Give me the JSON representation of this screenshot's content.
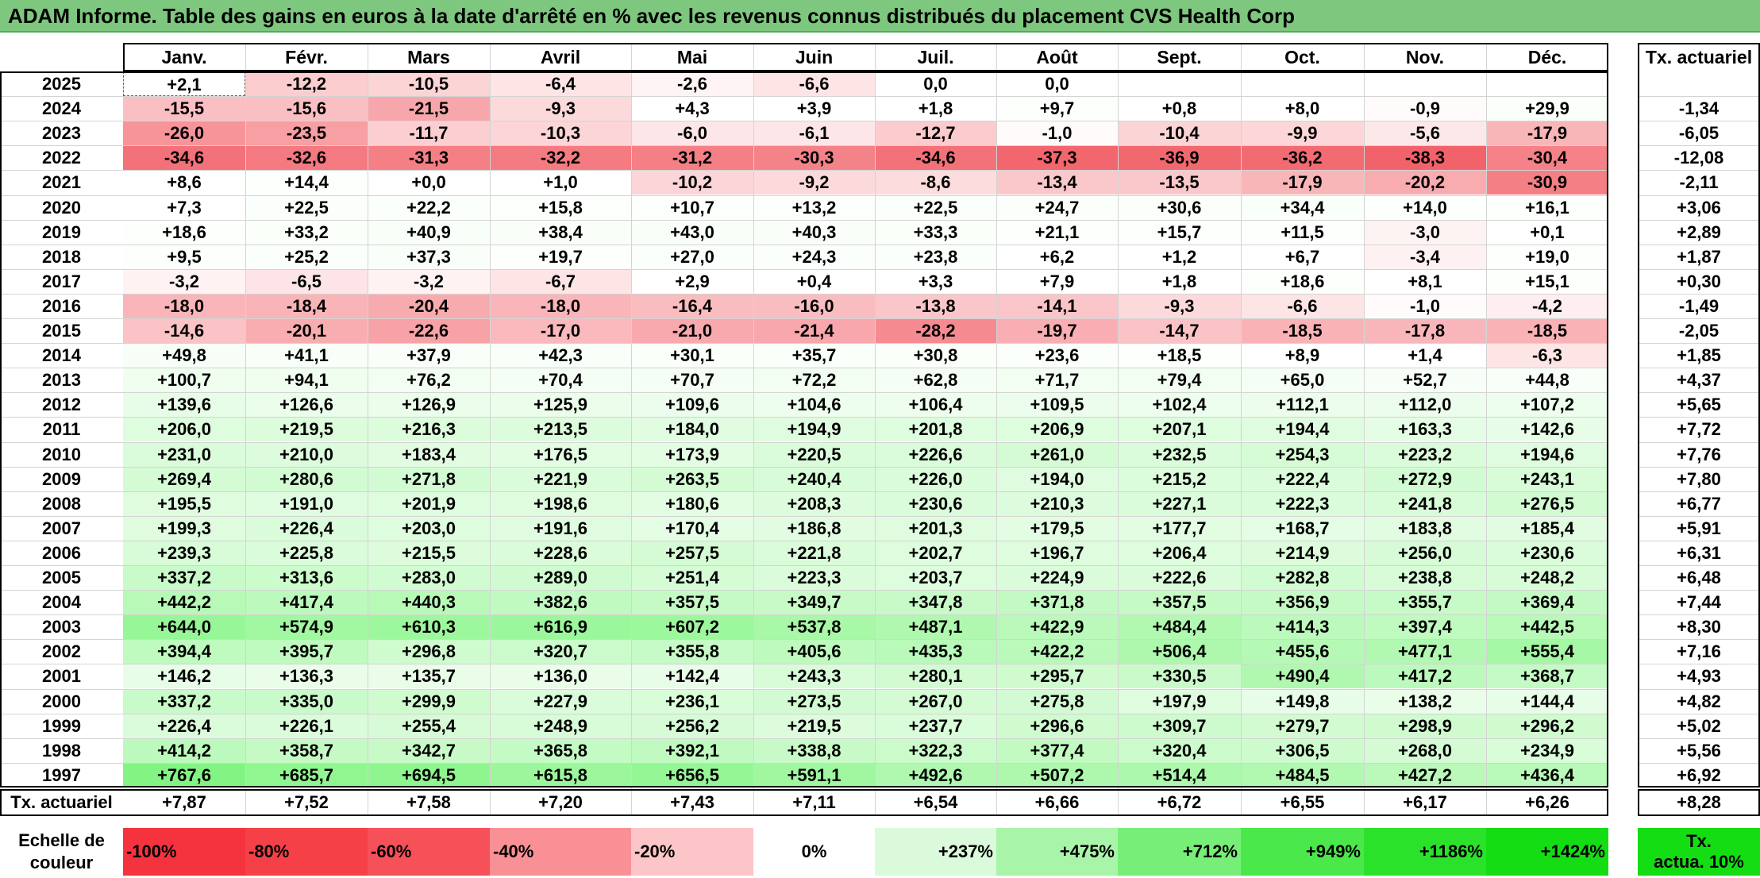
{
  "title": "ADAM Informe. Table des gains en euros à la date d'arrêté en % avec les revenus connus distribués du placement CVS Health Corp",
  "months": [
    "Janv.",
    "Févr.",
    "Mars",
    "Avril",
    "Mai",
    "Juin",
    "Juil.",
    "Août",
    "Sept.",
    "Oct.",
    "Nov.",
    "Déc."
  ],
  "rate_header": "Tx. actuariel",
  "rows": [
    {
      "year": "2025",
      "values": [
        "+2,1",
        "-12,2",
        "-10,5",
        "-6,4",
        "-2,6",
        "-6,6",
        "0,0",
        "0,0",
        "",
        "",
        "",
        ""
      ],
      "rate": ""
    },
    {
      "year": "2024",
      "values": [
        "-15,5",
        "-15,6",
        "-21,5",
        "-9,3",
        "+4,3",
        "+3,9",
        "+1,8",
        "+9,7",
        "+0,8",
        "+8,0",
        "-0,9",
        "+29,9"
      ],
      "rate": "-1,34"
    },
    {
      "year": "2023",
      "values": [
        "-26,0",
        "-23,5",
        "-11,7",
        "-10,3",
        "-6,0",
        "-6,1",
        "-12,7",
        "-1,0",
        "-10,4",
        "-9,9",
        "-5,6",
        "-17,9"
      ],
      "rate": "-6,05"
    },
    {
      "year": "2022",
      "values": [
        "-34,6",
        "-32,6",
        "-31,3",
        "-32,2",
        "-31,2",
        "-30,3",
        "-34,6",
        "-37,3",
        "-36,9",
        "-36,2",
        "-38,3",
        "-30,4"
      ],
      "rate": "-12,08"
    },
    {
      "year": "2021",
      "values": [
        "+8,6",
        "+14,4",
        "+0,0",
        "+1,0",
        "-10,2",
        "-9,2",
        "-8,6",
        "-13,4",
        "-13,5",
        "-17,9",
        "-20,2",
        "-30,9"
      ],
      "rate": "-2,11"
    },
    {
      "year": "2020",
      "values": [
        "+7,3",
        "+22,5",
        "+22,2",
        "+15,8",
        "+10,7",
        "+13,2",
        "+22,5",
        "+24,7",
        "+30,6",
        "+34,4",
        "+14,0",
        "+16,1"
      ],
      "rate": "+3,06"
    },
    {
      "year": "2019",
      "values": [
        "+18,6",
        "+33,2",
        "+40,9",
        "+38,4",
        "+43,0",
        "+40,3",
        "+33,3",
        "+21,1",
        "+15,7",
        "+11,5",
        "-3,0",
        "+0,1"
      ],
      "rate": "+2,89"
    },
    {
      "year": "2018",
      "values": [
        "+9,5",
        "+25,2",
        "+37,3",
        "+19,7",
        "+27,0",
        "+24,3",
        "+23,8",
        "+6,2",
        "+1,2",
        "+6,7",
        "-3,4",
        "+19,0"
      ],
      "rate": "+1,87"
    },
    {
      "year": "2017",
      "values": [
        "-3,2",
        "-6,5",
        "-3,2",
        "-6,7",
        "+2,9",
        "+0,4",
        "+3,3",
        "+7,9",
        "+1,8",
        "+18,6",
        "+8,1",
        "+15,1"
      ],
      "rate": "+0,30"
    },
    {
      "year": "2016",
      "values": [
        "-18,0",
        "-18,4",
        "-20,4",
        "-18,0",
        "-16,4",
        "-16,0",
        "-13,8",
        "-14,1",
        "-9,3",
        "-6,6",
        "-1,0",
        "-4,2"
      ],
      "rate": "-1,49"
    },
    {
      "year": "2015",
      "values": [
        "-14,6",
        "-20,1",
        "-22,6",
        "-17,0",
        "-21,0",
        "-21,4",
        "-28,2",
        "-19,7",
        "-14,7",
        "-18,5",
        "-17,8",
        "-18,5"
      ],
      "rate": "-2,05"
    },
    {
      "year": "2014",
      "values": [
        "+49,8",
        "+41,1",
        "+37,9",
        "+42,3",
        "+30,1",
        "+35,7",
        "+30,8",
        "+23,6",
        "+18,5",
        "+8,9",
        "+1,4",
        "-6,3"
      ],
      "rate": "+1,85"
    },
    {
      "year": "2013",
      "values": [
        "+100,7",
        "+94,1",
        "+76,2",
        "+70,4",
        "+70,7",
        "+72,2",
        "+62,8",
        "+71,7",
        "+79,4",
        "+65,0",
        "+52,7",
        "+44,8"
      ],
      "rate": "+4,37"
    },
    {
      "year": "2012",
      "values": [
        "+139,6",
        "+126,6",
        "+126,9",
        "+125,9",
        "+109,6",
        "+104,6",
        "+106,4",
        "+109,5",
        "+102,4",
        "+112,1",
        "+112,0",
        "+107,2"
      ],
      "rate": "+5,65"
    },
    {
      "year": "2011",
      "values": [
        "+206,0",
        "+219,5",
        "+216,3",
        "+213,5",
        "+184,0",
        "+194,9",
        "+201,8",
        "+206,9",
        "+207,1",
        "+194,4",
        "+163,3",
        "+142,6"
      ],
      "rate": "+7,72"
    },
    {
      "year": "2010",
      "values": [
        "+231,0",
        "+210,0",
        "+183,4",
        "+176,5",
        "+173,9",
        "+220,5",
        "+226,6",
        "+261,0",
        "+232,5",
        "+254,3",
        "+223,2",
        "+194,6"
      ],
      "rate": "+7,76"
    },
    {
      "year": "2009",
      "values": [
        "+269,4",
        "+280,6",
        "+271,8",
        "+221,9",
        "+263,5",
        "+240,4",
        "+226,0",
        "+194,0",
        "+215,2",
        "+222,4",
        "+272,9",
        "+243,1"
      ],
      "rate": "+7,80"
    },
    {
      "year": "2008",
      "values": [
        "+195,5",
        "+191,0",
        "+201,9",
        "+198,6",
        "+180,6",
        "+208,3",
        "+230,6",
        "+210,3",
        "+227,1",
        "+222,3",
        "+241,8",
        "+276,5"
      ],
      "rate": "+6,77"
    },
    {
      "year": "2007",
      "values": [
        "+199,3",
        "+226,4",
        "+203,0",
        "+191,6",
        "+170,4",
        "+186,8",
        "+201,3",
        "+179,5",
        "+177,7",
        "+168,7",
        "+183,8",
        "+185,4"
      ],
      "rate": "+5,91"
    },
    {
      "year": "2006",
      "values": [
        "+239,3",
        "+225,8",
        "+215,5",
        "+228,6",
        "+257,5",
        "+221,8",
        "+202,7",
        "+196,7",
        "+206,4",
        "+214,9",
        "+256,0",
        "+230,6"
      ],
      "rate": "+6,31"
    },
    {
      "year": "2005",
      "values": [
        "+337,2",
        "+313,6",
        "+283,0",
        "+289,0",
        "+251,4",
        "+223,3",
        "+203,7",
        "+224,9",
        "+222,6",
        "+282,8",
        "+238,8",
        "+248,2"
      ],
      "rate": "+6,48"
    },
    {
      "year": "2004",
      "values": [
        "+442,2",
        "+417,4",
        "+440,3",
        "+382,6",
        "+357,5",
        "+349,7",
        "+347,8",
        "+371,8",
        "+357,5",
        "+356,9",
        "+355,7",
        "+369,4"
      ],
      "rate": "+7,44"
    },
    {
      "year": "2003",
      "values": [
        "+644,0",
        "+574,9",
        "+610,3",
        "+616,9",
        "+607,2",
        "+537,8",
        "+487,1",
        "+422,9",
        "+484,4",
        "+414,3",
        "+397,4",
        "+442,5"
      ],
      "rate": "+8,30"
    },
    {
      "year": "2002",
      "values": [
        "+394,4",
        "+395,7",
        "+296,8",
        "+320,7",
        "+355,8",
        "+405,6",
        "+435,3",
        "+422,2",
        "+506,4",
        "+455,6",
        "+477,1",
        "+555,4"
      ],
      "rate": "+7,16"
    },
    {
      "year": "2001",
      "values": [
        "+146,2",
        "+136,3",
        "+135,7",
        "+136,0",
        "+142,4",
        "+243,3",
        "+280,1",
        "+295,7",
        "+330,5",
        "+490,4",
        "+417,2",
        "+368,7"
      ],
      "rate": "+4,93"
    },
    {
      "year": "2000",
      "values": [
        "+337,2",
        "+335,0",
        "+299,9",
        "+227,9",
        "+236,1",
        "+273,5",
        "+267,0",
        "+275,8",
        "+197,9",
        "+149,8",
        "+138,2",
        "+144,4"
      ],
      "rate": "+4,82"
    },
    {
      "year": "1999",
      "values": [
        "+226,4",
        "+226,1",
        "+255,4",
        "+248,9",
        "+256,2",
        "+219,5",
        "+237,7",
        "+296,6",
        "+309,7",
        "+279,7",
        "+298,9",
        "+296,2"
      ],
      "rate": "+5,02"
    },
    {
      "year": "1998",
      "values": [
        "+414,2",
        "+358,7",
        "+342,7",
        "+365,8",
        "+392,1",
        "+338,8",
        "+322,3",
        "+377,4",
        "+320,4",
        "+306,5",
        "+268,0",
        "+234,9"
      ],
      "rate": "+5,56"
    },
    {
      "year": "1997",
      "values": [
        "+767,6",
        "+685,7",
        "+694,5",
        "+615,8",
        "+656,5",
        "+591,1",
        "+492,6",
        "+507,2",
        "+514,4",
        "+484,5",
        "+427,2",
        "+436,4"
      ],
      "rate": "+6,92"
    }
  ],
  "footer": {
    "label": "Tx. actuariel",
    "values": [
      "+7,87",
      "+7,52",
      "+7,58",
      "+7,20",
      "+7,43",
      "+7,11",
      "+6,54",
      "+6,66",
      "+6,72",
      "+6,55",
      "+6,17",
      "+6,26"
    ],
    "rate": "+8,28"
  },
  "legend": {
    "label_line1": "Echelle de",
    "label_line2": "couleur",
    "items": [
      {
        "text": "-100%",
        "color": "#f4333f"
      },
      {
        "text": "-80%",
        "color": "#f54048"
      },
      {
        "text": "-60%",
        "color": "#f65058"
      },
      {
        "text": "-40%",
        "color": "#f99096"
      },
      {
        "text": "-20%",
        "color": "#fcc6c9"
      },
      {
        "text": "0%",
        "color": "#ffffff"
      },
      {
        "text": "+237%",
        "color": "#dbf9db"
      },
      {
        "text": "+475%",
        "color": "#a8f4a8"
      },
      {
        "text": "+712%",
        "color": "#77ee77"
      },
      {
        "text": "+949%",
        "color": "#4ae84a"
      },
      {
        "text": "+1186%",
        "color": "#2be22b"
      },
      {
        "text": "+1424%",
        "color": "#14dd14"
      }
    ],
    "rate_line1": "Tx.",
    "rate_line2": "actua. 10%",
    "rate_color": "#14dd14"
  },
  "colors": {
    "title_bg": "#7ec77e",
    "neg_max": "#f4333f",
    "pos_max": "#14dd14",
    "neutral": "#ffffff"
  }
}
